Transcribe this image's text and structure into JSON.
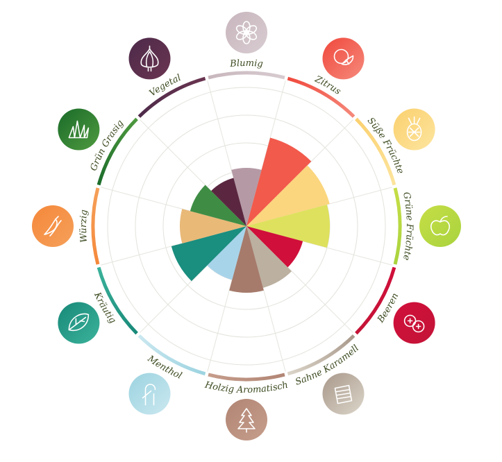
{
  "chart_data": {
    "type": "radial-bar",
    "scale_max": 5,
    "categories": [
      {
        "name": "Blumig",
        "value": 2.1,
        "color": "#b59aa5",
        "ring_from": "#c8b6bd",
        "ring_to": "#d8ccd1",
        "icon": "flower-icon"
      },
      {
        "name": "Zitrus",
        "value": 3.3,
        "color": "#f25a4c",
        "ring_from": "#f0483c",
        "ring_to": "#f58a7c",
        "icon": "citrus-icon"
      },
      {
        "name": "Süße Früchte",
        "value": 3.1,
        "color": "#fbd67e",
        "ring_from": "#fbd06e",
        "ring_to": "#fce59f",
        "icon": "pineapple-icon"
      },
      {
        "name": "Grüne Früchte",
        "value": 3.0,
        "color": "#dee15d",
        "ring_from": "#c6de46",
        "ring_to": "#a9d33e",
        "icon": "apple-icon"
      },
      {
        "name": "Beeren",
        "value": 2.1,
        "color": "#d00f3a",
        "ring_from": "#d00f3a",
        "ring_to": "#c41437",
        "icon": "berries-icon"
      },
      {
        "name": "Sahne Karamell",
        "value": 2.3,
        "color": "#bcb0a0",
        "ring_from": "#a8988a",
        "ring_to": "#dcd6ca",
        "icon": "caramel-icon"
      },
      {
        "name": "Holzig Aromatisch",
        "value": 2.4,
        "color": "#a67b6c",
        "ring_from": "#b18574",
        "ring_to": "#c69d8b",
        "icon": "tree-icon"
      },
      {
        "name": "Menthol",
        "value": 2.0,
        "color": "#a8d4ea",
        "ring_from": "#9bd3e0",
        "ring_to": "#cbe8f0",
        "icon": "candy-cane-icon"
      },
      {
        "name": "Kräutig",
        "value": 2.8,
        "color": "#1a8e7f",
        "ring_from": "#178878",
        "ring_to": "#3cb39b",
        "icon": "leaf-icon"
      },
      {
        "name": "Würzig",
        "value": 2.4,
        "color": "#e9b978",
        "ring_from": "#f5883a",
        "ring_to": "#f5a05a",
        "icon": "chili-icon"
      },
      {
        "name": "Grün Grasig",
        "value": 2.1,
        "color": "#3f8d45",
        "ring_from": "#1a6b2a",
        "ring_to": "#4f9a3f",
        "icon": "grass-icon"
      },
      {
        "name": "Vegetal",
        "value": 1.8,
        "color": "#5b2740",
        "ring_from": "#4d2a4a",
        "ring_to": "#6a3550",
        "icon": "onion-icon"
      }
    ]
  }
}
